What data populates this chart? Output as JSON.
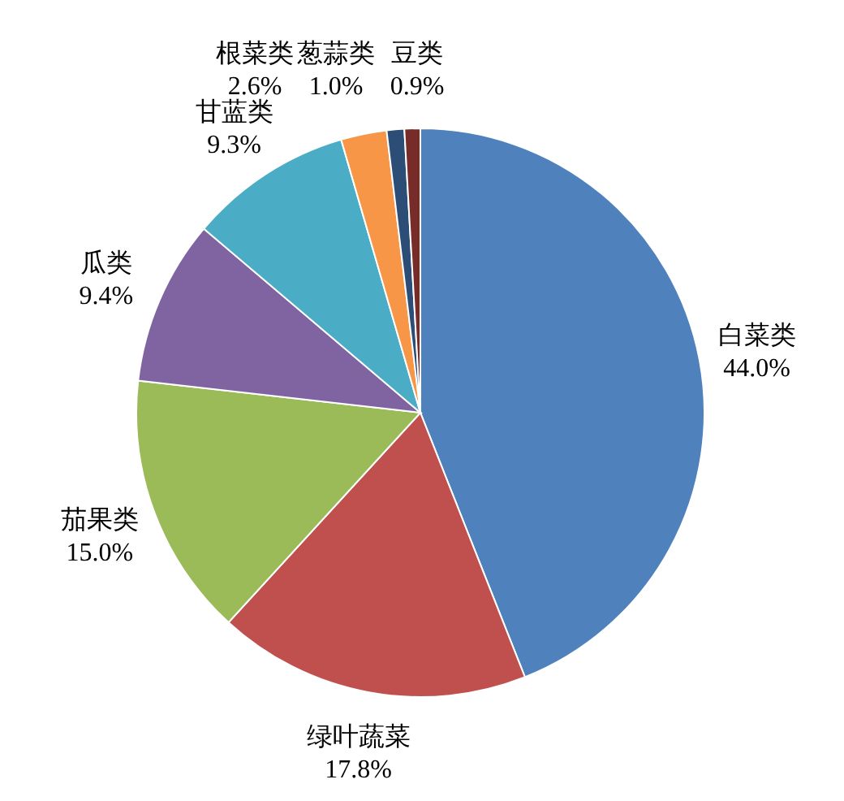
{
  "chart_data": {
    "type": "pie",
    "categories": [
      "白菜类",
      "绿叶蔬菜",
      "茄果类",
      "瓜类",
      "甘蓝类",
      "根菜类",
      "葱蒜类",
      "豆类"
    ],
    "values": [
      44.0,
      17.8,
      15.0,
      9.4,
      9.3,
      2.6,
      1.0,
      0.9
    ],
    "value_labels": [
      "44.0%",
      "17.8%",
      "15.0%",
      "9.4%",
      "9.3%",
      "2.6%",
      "1.0%",
      "0.9%"
    ],
    "colors": [
      "#4f81bd",
      "#c0504d",
      "#9bbb59",
      "#8064a2",
      "#4bacc6",
      "#f79646",
      "#2c4d75",
      "#772c2a"
    ]
  }
}
